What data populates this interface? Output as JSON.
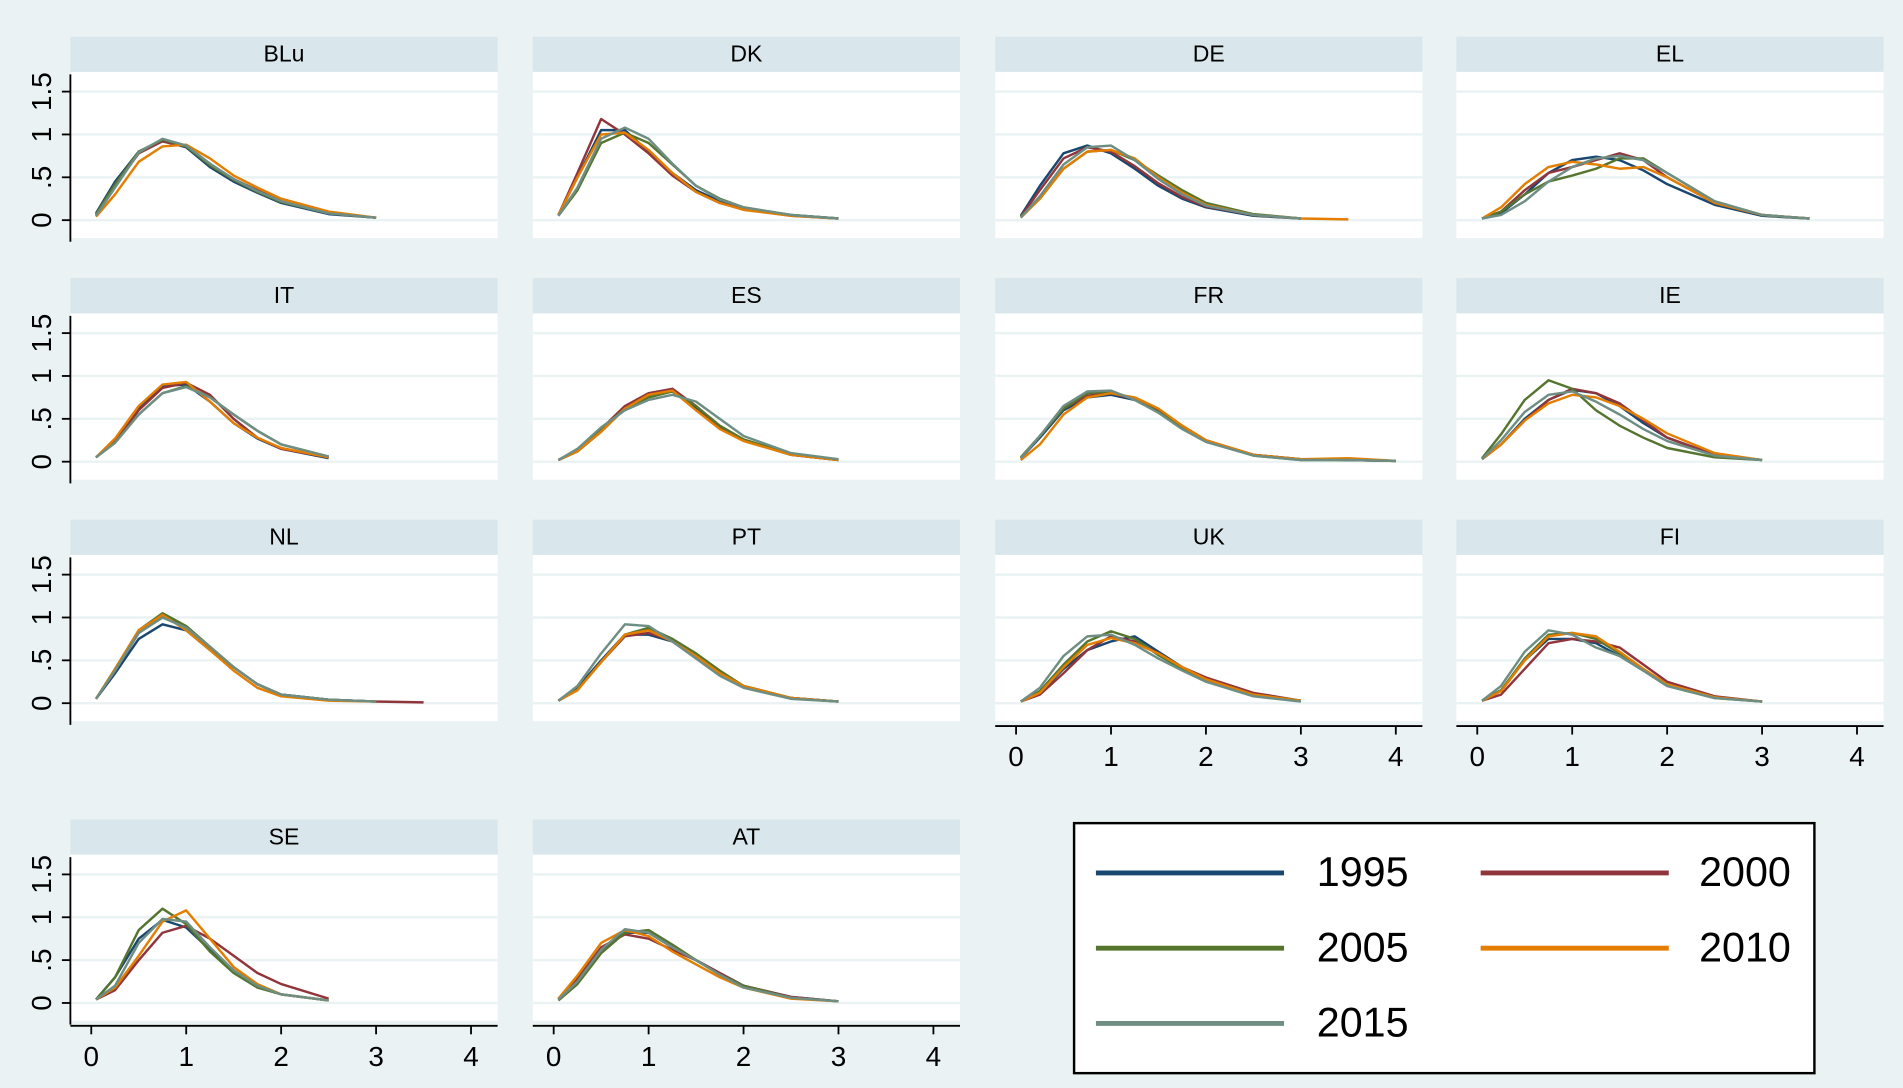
{
  "chart_data": {
    "type": "line",
    "x": [
      0.05,
      0.25,
      0.5,
      0.75,
      1,
      1.25,
      1.5,
      1.75,
      2,
      2.5,
      3,
      3.5,
      4
    ],
    "xlim": [
      -0.22,
      4.28
    ],
    "xticks": [
      0,
      1,
      2,
      3,
      4
    ],
    "ylim": [
      -0.21,
      1.73
    ],
    "yticks": [
      0,
      {
        "value": 0.5,
        "label": ".5"
      },
      1,
      1.5
    ],
    "grid": true,
    "series": [
      {
        "name": "1995",
        "color": "#1a476f"
      },
      {
        "name": "2000",
        "color": "#90353b"
      },
      {
        "name": "2005",
        "color": "#55752f"
      },
      {
        "name": "2010",
        "color": "#e37e00"
      },
      {
        "name": "2015",
        "color": "#6e8e84"
      }
    ],
    "panels": [
      {
        "title": "BLu",
        "values": [
          [
            0.08,
            0.45,
            0.8,
            0.92,
            0.85,
            0.62,
            0.45,
            0.32,
            0.2,
            0.07,
            0.03,
            null,
            null
          ],
          [
            0.06,
            0.4,
            0.78,
            0.92,
            0.86,
            0.65,
            0.48,
            0.35,
            0.22,
            0.08,
            0.03,
            null,
            null
          ],
          [
            0.07,
            0.42,
            0.8,
            0.94,
            0.86,
            0.64,
            0.47,
            0.33,
            0.21,
            0.08,
            0.03,
            null,
            null
          ],
          [
            0.04,
            0.3,
            0.68,
            0.86,
            0.88,
            0.72,
            0.52,
            0.38,
            0.25,
            0.1,
            0.03,
            null,
            null
          ],
          [
            0.05,
            0.38,
            0.79,
            0.95,
            0.87,
            0.66,
            0.48,
            0.34,
            0.22,
            0.08,
            0.03,
            null,
            null
          ]
        ]
      },
      {
        "title": "DK",
        "values": [
          [
            0.06,
            0.5,
            1.05,
            1.05,
            0.8,
            0.55,
            0.35,
            0.22,
            0.14,
            0.06,
            0.02,
            null,
            null
          ],
          [
            0.06,
            0.55,
            1.18,
            1.0,
            0.78,
            0.52,
            0.33,
            0.2,
            0.13,
            0.05,
            0.02,
            null,
            null
          ],
          [
            0.05,
            0.35,
            0.9,
            1.02,
            0.9,
            0.65,
            0.4,
            0.25,
            0.15,
            0.06,
            0.02,
            null,
            null
          ],
          [
            0.06,
            0.5,
            1.0,
            1.02,
            0.82,
            0.55,
            0.33,
            0.2,
            0.12,
            0.05,
            0.02,
            null,
            null
          ],
          [
            0.05,
            0.38,
            0.95,
            1.08,
            0.95,
            0.66,
            0.4,
            0.24,
            0.15,
            0.06,
            0.02,
            null,
            null
          ]
        ]
      },
      {
        "title": "DE",
        "values": [
          [
            0.05,
            0.4,
            0.78,
            0.87,
            0.78,
            0.6,
            0.4,
            0.25,
            0.15,
            0.05,
            0.02,
            null,
            null
          ],
          [
            0.04,
            0.35,
            0.72,
            0.85,
            0.8,
            0.63,
            0.43,
            0.27,
            0.16,
            0.06,
            0.02,
            null,
            null
          ],
          [
            0.04,
            0.25,
            0.6,
            0.8,
            0.82,
            0.7,
            0.52,
            0.35,
            0.2,
            0.07,
            0.02,
            null,
            null
          ],
          [
            0.03,
            0.25,
            0.6,
            0.8,
            0.82,
            0.72,
            0.5,
            0.32,
            0.18,
            0.06,
            0.02,
            0.01,
            null
          ],
          [
            0.03,
            0.28,
            0.65,
            0.85,
            0.87,
            0.7,
            0.48,
            0.3,
            0.17,
            0.06,
            0.02,
            null,
            null
          ]
        ]
      },
      {
        "title": "EL",
        "values": [
          [
            0.02,
            0.08,
            0.3,
            0.55,
            0.7,
            0.74,
            0.7,
            0.58,
            0.42,
            0.18,
            0.05,
            0.02,
            null
          ],
          [
            0.02,
            0.1,
            0.35,
            0.55,
            0.62,
            0.7,
            0.78,
            0.7,
            0.5,
            0.2,
            0.06,
            0.02,
            null
          ],
          [
            0.02,
            0.1,
            0.3,
            0.45,
            0.52,
            0.6,
            0.72,
            0.72,
            0.55,
            0.22,
            0.06,
            0.02,
            null
          ],
          [
            0.02,
            0.15,
            0.42,
            0.62,
            0.68,
            0.65,
            0.6,
            0.62,
            0.5,
            0.2,
            0.06,
            0.02,
            null
          ],
          [
            0.02,
            0.06,
            0.22,
            0.45,
            0.62,
            0.72,
            0.75,
            0.7,
            0.55,
            0.22,
            0.06,
            0.02,
            null
          ]
        ]
      },
      {
        "title": "IT",
        "values": [
          [
            0.05,
            0.25,
            0.62,
            0.88,
            0.9,
            0.7,
            0.45,
            0.27,
            0.15,
            0.04,
            null,
            null,
            null
          ],
          [
            0.05,
            0.24,
            0.6,
            0.86,
            0.92,
            0.78,
            0.5,
            0.28,
            0.15,
            0.05,
            null,
            null,
            null
          ],
          [
            0.05,
            0.22,
            0.55,
            0.8,
            0.88,
            0.75,
            0.55,
            0.36,
            0.2,
            0.06,
            null,
            null,
            null
          ],
          [
            0.05,
            0.27,
            0.65,
            0.9,
            0.93,
            0.7,
            0.45,
            0.28,
            0.16,
            0.05,
            null,
            null,
            null
          ],
          [
            0.05,
            0.22,
            0.55,
            0.8,
            0.87,
            0.75,
            0.55,
            0.36,
            0.2,
            0.06,
            null,
            null,
            null
          ]
        ]
      },
      {
        "title": "ES",
        "values": [
          [
            0.02,
            0.12,
            0.35,
            0.62,
            0.78,
            0.82,
            0.62,
            0.4,
            0.25,
            0.08,
            0.02,
            null,
            null
          ],
          [
            0.02,
            0.12,
            0.38,
            0.65,
            0.8,
            0.85,
            0.65,
            0.4,
            0.25,
            0.08,
            0.02,
            null,
            null
          ],
          [
            0.02,
            0.14,
            0.38,
            0.62,
            0.75,
            0.82,
            0.65,
            0.42,
            0.26,
            0.09,
            0.02,
            null,
            null
          ],
          [
            0.02,
            0.12,
            0.35,
            0.62,
            0.78,
            0.83,
            0.6,
            0.38,
            0.24,
            0.08,
            0.02,
            null,
            null
          ],
          [
            0.02,
            0.15,
            0.4,
            0.6,
            0.72,
            0.78,
            0.7,
            0.5,
            0.3,
            0.1,
            0.03,
            null,
            null
          ]
        ]
      },
      {
        "title": "FR",
        "values": [
          [
            0.04,
            0.28,
            0.6,
            0.75,
            0.78,
            0.72,
            0.58,
            0.4,
            0.24,
            0.08,
            0.03,
            0.02,
            0.01
          ],
          [
            0.04,
            0.3,
            0.62,
            0.77,
            0.8,
            0.73,
            0.6,
            0.42,
            0.25,
            0.08,
            0.03,
            0.02,
            0.01
          ],
          [
            0.05,
            0.3,
            0.62,
            0.8,
            0.82,
            0.73,
            0.58,
            0.4,
            0.24,
            0.07,
            0.02,
            0.02,
            0.01
          ],
          [
            0.02,
            0.2,
            0.55,
            0.75,
            0.8,
            0.75,
            0.62,
            0.42,
            0.25,
            0.08,
            0.03,
            0.04,
            0.01
          ],
          [
            0.04,
            0.3,
            0.65,
            0.82,
            0.83,
            0.72,
            0.57,
            0.38,
            0.23,
            0.07,
            0.02,
            0.02,
            0.01
          ]
        ]
      },
      {
        "title": "IE",
        "values": [
          [
            0.03,
            0.2,
            0.5,
            0.72,
            0.84,
            0.8,
            0.65,
            0.45,
            0.28,
            0.08,
            0.02,
            null,
            null
          ],
          [
            0.03,
            0.2,
            0.48,
            0.72,
            0.85,
            0.8,
            0.68,
            0.48,
            0.28,
            0.08,
            0.02,
            null,
            null
          ],
          [
            0.04,
            0.32,
            0.72,
            0.95,
            0.85,
            0.6,
            0.42,
            0.28,
            0.16,
            0.05,
            0.02,
            null,
            null
          ],
          [
            0.03,
            0.2,
            0.48,
            0.68,
            0.78,
            0.75,
            0.65,
            0.5,
            0.33,
            0.1,
            0.02,
            null,
            null
          ],
          [
            0.03,
            0.25,
            0.58,
            0.78,
            0.82,
            0.7,
            0.55,
            0.38,
            0.24,
            0.07,
            0.02,
            null,
            null
          ]
        ]
      },
      {
        "title": "NL",
        "values": [
          [
            0.05,
            0.35,
            0.75,
            0.92,
            0.85,
            0.62,
            0.42,
            0.22,
            0.1,
            0.04,
            0.02,
            null,
            null
          ],
          [
            0.05,
            0.38,
            0.82,
            1.02,
            0.88,
            0.65,
            0.42,
            0.22,
            0.1,
            0.04,
            0.02,
            0.01,
            null
          ],
          [
            0.05,
            0.4,
            0.85,
            1.05,
            0.9,
            0.66,
            0.42,
            0.22,
            0.1,
            0.04,
            0.02,
            null,
            null
          ],
          [
            0.05,
            0.4,
            0.85,
            1.03,
            0.85,
            0.62,
            0.38,
            0.18,
            0.08,
            0.03,
            0.02,
            null,
            null
          ],
          [
            0.05,
            0.38,
            0.82,
            1.0,
            0.88,
            0.66,
            0.42,
            0.22,
            0.1,
            0.04,
            0.02,
            null,
            null
          ]
        ]
      },
      {
        "title": "PT",
        "values": [
          [
            0.03,
            0.18,
            0.5,
            0.8,
            0.8,
            0.72,
            0.55,
            0.35,
            0.2,
            0.06,
            0.02,
            null,
            null
          ],
          [
            0.03,
            0.16,
            0.48,
            0.78,
            0.82,
            0.73,
            0.56,
            0.36,
            0.2,
            0.06,
            0.02,
            null,
            null
          ],
          [
            0.03,
            0.16,
            0.48,
            0.8,
            0.88,
            0.75,
            0.58,
            0.38,
            0.2,
            0.06,
            0.02,
            null,
            null
          ],
          [
            0.03,
            0.15,
            0.48,
            0.8,
            0.85,
            0.72,
            0.55,
            0.35,
            0.2,
            0.06,
            0.02,
            null,
            null
          ],
          [
            0.03,
            0.2,
            0.58,
            0.92,
            0.9,
            0.72,
            0.52,
            0.32,
            0.18,
            0.05,
            0.02,
            null,
            null
          ]
        ]
      },
      {
        "title": "UK",
        "values": [
          [
            0.02,
            0.12,
            0.4,
            0.62,
            0.72,
            0.78,
            0.6,
            0.42,
            0.28,
            0.1,
            0.03,
            null,
            null
          ],
          [
            0.02,
            0.1,
            0.35,
            0.62,
            0.78,
            0.72,
            0.58,
            0.42,
            0.3,
            0.12,
            0.03,
            null,
            null
          ],
          [
            0.02,
            0.14,
            0.45,
            0.72,
            0.84,
            0.75,
            0.56,
            0.4,
            0.27,
            0.1,
            0.03,
            null,
            null
          ],
          [
            0.02,
            0.12,
            0.42,
            0.68,
            0.76,
            0.7,
            0.58,
            0.42,
            0.28,
            0.1,
            0.03,
            null,
            null
          ],
          [
            0.02,
            0.18,
            0.55,
            0.78,
            0.8,
            0.68,
            0.52,
            0.38,
            0.25,
            0.08,
            0.02,
            null,
            null
          ]
        ]
      },
      {
        "title": "FI",
        "values": [
          [
            0.03,
            0.15,
            0.5,
            0.75,
            0.75,
            0.7,
            0.55,
            0.38,
            0.22,
            0.07,
            0.02,
            null,
            null
          ],
          [
            0.03,
            0.1,
            0.4,
            0.7,
            0.75,
            0.72,
            0.65,
            0.45,
            0.25,
            0.08,
            0.02,
            null,
            null
          ],
          [
            0.03,
            0.15,
            0.52,
            0.8,
            0.82,
            0.75,
            0.58,
            0.38,
            0.2,
            0.06,
            0.02,
            null,
            null
          ],
          [
            0.03,
            0.14,
            0.5,
            0.78,
            0.82,
            0.78,
            0.6,
            0.4,
            0.22,
            0.07,
            0.02,
            null,
            null
          ],
          [
            0.03,
            0.2,
            0.6,
            0.85,
            0.8,
            0.65,
            0.55,
            0.38,
            0.2,
            0.06,
            0.02,
            null,
            null
          ]
        ]
      },
      {
        "title": "SE",
        "values": [
          [
            0.04,
            0.3,
            0.75,
            0.97,
            0.88,
            0.62,
            0.38,
            0.2,
            0.1,
            0.03,
            null,
            null,
            null
          ],
          [
            0.04,
            0.15,
            0.5,
            0.82,
            0.9,
            0.75,
            0.55,
            0.35,
            0.22,
            0.05,
            null,
            null,
            null
          ],
          [
            0.04,
            0.3,
            0.85,
            1.1,
            0.92,
            0.6,
            0.35,
            0.18,
            0.1,
            0.03,
            null,
            null,
            null
          ],
          [
            0.04,
            0.18,
            0.55,
            0.95,
            1.08,
            0.75,
            0.42,
            0.22,
            0.1,
            0.03,
            null,
            null,
            null
          ],
          [
            0.04,
            0.2,
            0.7,
            0.98,
            0.95,
            0.65,
            0.38,
            0.2,
            0.1,
            0.03,
            null,
            null,
            null
          ]
        ]
      },
      {
        "title": "AT",
        "values": [
          [
            0.04,
            0.25,
            0.62,
            0.82,
            0.82,
            0.65,
            0.5,
            0.35,
            0.2,
            0.07,
            0.02,
            null,
            null
          ],
          [
            0.04,
            0.28,
            0.65,
            0.8,
            0.75,
            0.62,
            0.5,
            0.35,
            0.2,
            0.07,
            0.02,
            null,
            null
          ],
          [
            0.03,
            0.22,
            0.58,
            0.82,
            0.85,
            0.68,
            0.5,
            0.33,
            0.2,
            0.06,
            0.02,
            null,
            null
          ],
          [
            0.05,
            0.32,
            0.7,
            0.85,
            0.78,
            0.6,
            0.45,
            0.3,
            0.18,
            0.05,
            0.02,
            null,
            null
          ],
          [
            0.04,
            0.25,
            0.62,
            0.86,
            0.82,
            0.65,
            0.5,
            0.33,
            0.18,
            0.06,
            0.02,
            null,
            null
          ]
        ]
      }
    ]
  }
}
